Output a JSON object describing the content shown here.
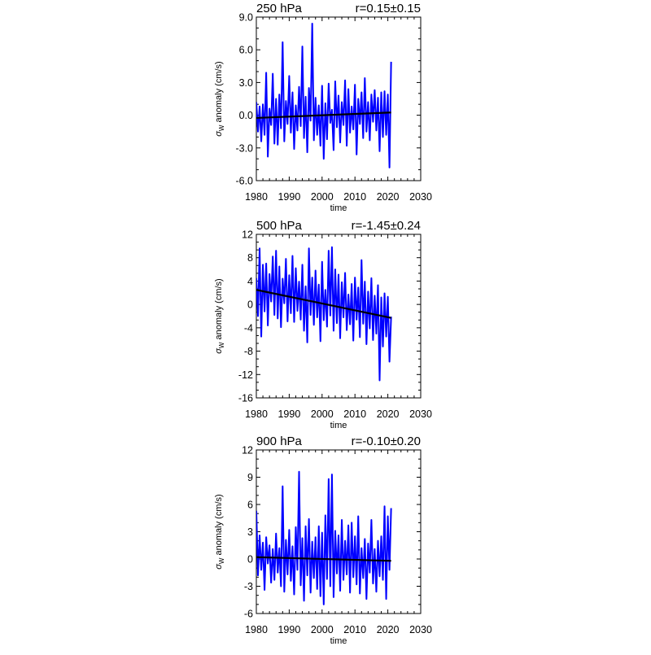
{
  "chart_data": [
    {
      "type": "line",
      "title": "250 hPa",
      "annotation": "r=0.15±0.15",
      "xlabel": "time",
      "ylabel": {
        "sigma": "σ",
        "subscript": "W",
        "rest": " anomaly (cm/s)"
      },
      "xlim": [
        1980,
        2030
      ],
      "ylim": [
        -6,
        9
      ],
      "xticks": [
        1980,
        1990,
        2000,
        2010,
        2020,
        2030
      ],
      "xtick_labels": [
        "1980",
        "1990",
        "2000",
        "2010",
        "2020",
        "2030"
      ],
      "yticks": [
        -6,
        -3,
        0,
        3,
        6,
        9
      ],
      "ytick_labels": [
        "-6.0",
        "-3.0",
        "0.0",
        "3.0",
        "6.0",
        "9.0"
      ],
      "line_color": "#0000ff",
      "trend_color": "#000000",
      "series": [
        {
          "x": [
            1980.0,
            1980.5,
            1981.0,
            1981.5,
            1982.0,
            1982.5,
            1983.0,
            1983.5,
            1984.0,
            1984.5,
            1985.0,
            1985.5,
            1986.0,
            1986.5,
            1987.0,
            1987.5,
            1988.0,
            1988.5,
            1989.0,
            1989.5,
            1990.0,
            1990.5,
            1991.0,
            1991.5,
            1992.0,
            1992.5,
            1993.0,
            1993.5,
            1994.0,
            1994.5,
            1995.0,
            1995.5,
            1996.0,
            1996.5,
            1997.0,
            1997.5,
            1998.0,
            1998.5,
            1999.0,
            1999.5,
            2000.0,
            2000.5,
            2001.0,
            2001.5,
            2002.0,
            2002.5,
            2003.0,
            2003.5,
            2004.0,
            2004.5,
            2005.0,
            2005.5,
            2006.0,
            2006.5,
            2007.0,
            2007.5,
            2008.0,
            2008.5,
            2009.0,
            2009.5,
            2010.0,
            2010.5,
            2011.0,
            2011.5,
            2012.0,
            2012.5,
            2013.0,
            2013.5,
            2014.0,
            2014.5,
            2015.0,
            2015.5,
            2016.0,
            2016.5,
            2017.0,
            2017.5,
            2018.0,
            2018.5,
            2019.0,
            2019.5,
            2020.0,
            2020.5,
            2021.0
          ],
          "y": [
            1.2,
            -1.5,
            0.8,
            -2.4,
            1.0,
            -1.8,
            3.9,
            -3.8,
            0.6,
            -0.9,
            3.8,
            -2.6,
            1.5,
            -2.7,
            1.9,
            -1.2,
            6.7,
            -2.4,
            1.3,
            -0.8,
            3.6,
            -1.6,
            2.1,
            -3.1,
            0.9,
            -1.4,
            2.6,
            -1.0,
            6.3,
            -2.1,
            1.7,
            -3.4,
            2.5,
            -0.5,
            8.4,
            -2.3,
            1.6,
            -1.8,
            0.9,
            -2.8,
            2.7,
            -4.0,
            1.1,
            -2.2,
            2.9,
            -0.7,
            0.5,
            -3.2,
            3.1,
            -1.1,
            1.8,
            -2.5,
            1.2,
            -0.9,
            3.2,
            -2.8,
            2.4,
            -1.6,
            0.8,
            -1.3,
            2.8,
            -3.6,
            1.5,
            -0.8,
            2.1,
            -2.1,
            3.4,
            -1.5,
            1.2,
            -2.3,
            1.9,
            -0.6,
            2.3,
            -1.4,
            1.6,
            -3.3,
            2.1,
            -2.0,
            2.2,
            -1.8,
            1.9,
            -4.8,
            4.9
          ]
        }
      ],
      "trend": {
        "x": [
          1980,
          2021
        ],
        "y": [
          -0.25,
          0.25
        ]
      }
    },
    {
      "type": "line",
      "title": "500 hPa",
      "annotation": "r=-1.45±0.24",
      "xlabel": "time",
      "ylabel": {
        "sigma": "σ",
        "subscript": "W",
        "rest": " anomaly (cm/s)"
      },
      "xlim": [
        1980,
        2030
      ],
      "ylim": [
        -16,
        12
      ],
      "xticks": [
        1980,
        1990,
        2000,
        2010,
        2020,
        2030
      ],
      "xtick_labels": [
        "1980",
        "1990",
        "2000",
        "2010",
        "2020",
        "2030"
      ],
      "yticks": [
        -16,
        -12,
        -8,
        -4,
        0,
        4,
        8,
        12
      ],
      "ytick_labels": [
        "-16",
        "-12",
        "-8",
        "-4",
        "0",
        "4",
        "8",
        "12"
      ],
      "line_color": "#0000ff",
      "trend_color": "#000000",
      "series": [
        {
          "x": [
            1980.0,
            1980.5,
            1981.0,
            1981.5,
            1982.0,
            1982.5,
            1983.0,
            1983.5,
            1984.0,
            1984.5,
            1985.0,
            1985.5,
            1986.0,
            1986.5,
            1987.0,
            1987.5,
            1988.0,
            1988.5,
            1989.0,
            1989.5,
            1990.0,
            1990.5,
            1991.0,
            1991.5,
            1992.0,
            1992.5,
            1993.0,
            1993.5,
            1994.0,
            1994.5,
            1995.0,
            1995.5,
            1996.0,
            1996.5,
            1997.0,
            1997.5,
            1998.0,
            1998.5,
            1999.0,
            1999.5,
            2000.0,
            2000.5,
            2001.0,
            2001.5,
            2002.0,
            2002.5,
            2003.0,
            2003.5,
            2004.0,
            2004.5,
            2005.0,
            2005.5,
            2006.0,
            2006.5,
            2007.0,
            2007.5,
            2008.0,
            2008.5,
            2009.0,
            2009.5,
            2010.0,
            2010.5,
            2011.0,
            2011.5,
            2012.0,
            2012.5,
            2013.0,
            2013.5,
            2014.0,
            2014.5,
            2015.0,
            2015.5,
            2016.0,
            2016.5,
            2017.0,
            2017.5,
            2018.0,
            2018.5,
            2019.0,
            2019.5,
            2020.0,
            2020.5,
            2021.0
          ],
          "y": [
            4.5,
            -2.0,
            9.6,
            -5.5,
            6.8,
            -1.2,
            7.0,
            -3.6,
            5.2,
            0.5,
            8.2,
            -1.8,
            9.2,
            -2.4,
            6.5,
            -3.9,
            4.4,
            0.2,
            7.8,
            -2.9,
            5.0,
            -1.5,
            8.3,
            -3.0,
            6.2,
            -1.1,
            3.9,
            -2.6,
            6.8,
            -4.5,
            3.1,
            -6.5,
            9.6,
            -1.8,
            4.6,
            -3.5,
            5.8,
            -2.2,
            3.4,
            -6.3,
            7.3,
            -2.7,
            2.5,
            -3.8,
            9.2,
            -1.9,
            9.8,
            -4.5,
            6.0,
            -3.2,
            5.1,
            -5.8,
            3.8,
            -2.2,
            5.4,
            -4.4,
            1.7,
            -3.4,
            3.5,
            -6.2,
            4.6,
            -2.6,
            2.9,
            -5.6,
            7.6,
            -3.3,
            3.9,
            -6.8,
            2.2,
            -4.1,
            4.5,
            -6.1,
            1.5,
            -5.0,
            3.3,
            -13.0,
            1.2,
            -7.2,
            1.9,
            -5.5,
            1.3,
            -9.8,
            -2.1
          ]
        }
      ],
      "trend": {
        "x": [
          1980,
          2021
        ],
        "y": [
          2.5,
          -2.3
        ]
      }
    },
    {
      "type": "line",
      "title": "900 hPa",
      "annotation": "r=-0.10±0.20",
      "xlabel": "time",
      "ylabel": {
        "sigma": "σ",
        "subscript": "W",
        "rest": " anomaly (cm/s)"
      },
      "xlim": [
        1980,
        2030
      ],
      "ylim": [
        -6,
        12
      ],
      "xticks": [
        1980,
        1990,
        2000,
        2010,
        2020,
        2030
      ],
      "xtick_labels": [
        "1980",
        "1990",
        "2000",
        "2010",
        "2020",
        "2030"
      ],
      "yticks": [
        -6,
        -3,
        0,
        3,
        6,
        9,
        12
      ],
      "ytick_labels": [
        "-6",
        "-3",
        "0",
        "3",
        "6",
        "9",
        "12"
      ],
      "line_color": "#0000ff",
      "trend_color": "#000000",
      "series": [
        {
          "x": [
            1980.0,
            1980.5,
            1981.0,
            1981.5,
            1982.0,
            1982.5,
            1983.0,
            1983.5,
            1984.0,
            1984.5,
            1985.0,
            1985.5,
            1986.0,
            1986.5,
            1987.0,
            1987.5,
            1988.0,
            1988.5,
            1989.0,
            1989.5,
            1990.0,
            1990.5,
            1991.0,
            1991.5,
            1992.0,
            1992.5,
            1993.0,
            1993.5,
            1994.0,
            1994.5,
            1995.0,
            1995.5,
            1996.0,
            1996.5,
            1997.0,
            1997.5,
            1998.0,
            1998.5,
            1999.0,
            1999.5,
            2000.0,
            2000.5,
            2001.0,
            2001.5,
            2002.0,
            2002.5,
            2003.0,
            2003.5,
            2004.0,
            2004.5,
            2005.0,
            2005.5,
            2006.0,
            2006.5,
            2007.0,
            2007.5,
            2008.0,
            2008.5,
            2009.0,
            2009.5,
            2010.0,
            2010.5,
            2011.0,
            2011.5,
            2012.0,
            2012.5,
            2013.0,
            2013.5,
            2014.0,
            2014.5,
            2015.0,
            2015.5,
            2016.0,
            2016.5,
            2017.0,
            2017.5,
            2018.0,
            2018.5,
            2019.0,
            2019.5,
            2020.0,
            2020.5,
            2021.0
          ],
          "y": [
            5.3,
            -1.8,
            2.6,
            -1.2,
            1.8,
            -3.4,
            2.4,
            -0.5,
            1.5,
            -2.6,
            1.1,
            -2.3,
            2.8,
            -1.5,
            1.2,
            -3.0,
            8.0,
            -3.6,
            2.1,
            -1.7,
            3.2,
            -2.4,
            1.4,
            -3.9,
            3.5,
            -1.2,
            9.6,
            -2.9,
            2.3,
            -4.6,
            3.6,
            -1.8,
            4.4,
            -3.7,
            1.9,
            -2.1,
            2.4,
            -3.3,
            3.6,
            -4.1,
            2.9,
            -5.0,
            4.8,
            -2.2,
            8.8,
            -3.0,
            9.3,
            -4.2,
            3.1,
            -1.6,
            2.6,
            -3.5,
            4.3,
            -2.3,
            2.0,
            -1.7,
            3.7,
            -3.7,
            4.0,
            -2.0,
            2.5,
            -2.8,
            4.7,
            -3.8,
            1.2,
            -2.1,
            2.2,
            -4.4,
            1.7,
            -1.5,
            4.3,
            -2.7,
            1.1,
            -3.6,
            2.0,
            -1.9,
            2.5,
            -2.3,
            5.8,
            -4.4,
            4.7,
            -1.2,
            5.6
          ]
        }
      ],
      "trend": {
        "x": [
          1980,
          2021
        ],
        "y": [
          0.2,
          -0.2
        ]
      }
    }
  ]
}
